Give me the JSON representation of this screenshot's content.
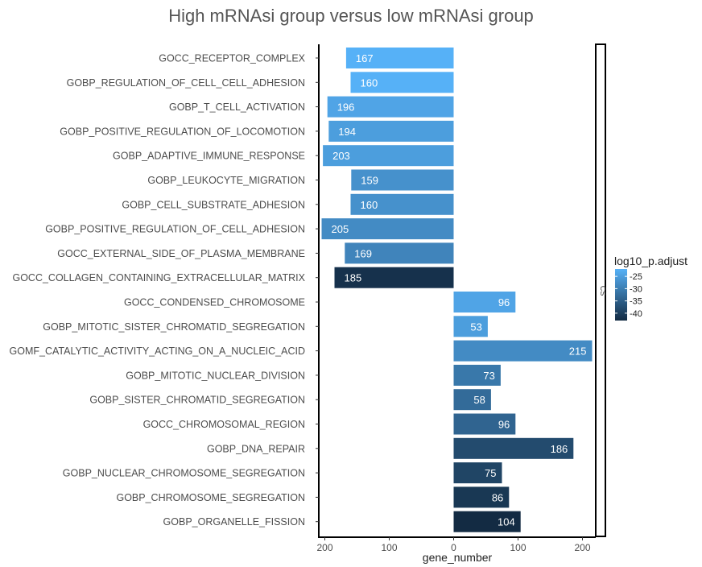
{
  "chart_data": {
    "type": "bar",
    "orientation": "horizontal",
    "title": "High mRNAsi group versus low mRNAsi group",
    "xlabel": "gene_number",
    "ylabel": "",
    "x_ticks": [
      "200",
      "100",
      "0",
      "100",
      "200"
    ],
    "x_tick_values": [
      -200,
      -100,
      0,
      100,
      200
    ],
    "xlim": [
      -210,
      222
    ],
    "facet_label": "CS",
    "legend": {
      "title": "log10_p.adjust",
      "ticks": [
        "-25",
        "-30",
        "-35",
        "-40"
      ],
      "tick_values": [
        -25,
        -30,
        -35,
        -40
      ],
      "range": [
        -43,
        -22
      ],
      "colors": [
        "#132b43",
        "#56b1f7"
      ],
      "placement": "right"
    },
    "categories": [
      "GOCC_RECEPTOR_COMPLEX",
      "GOBP_REGULATION_OF_CELL_CELL_ADHESION",
      "GOBP_T_CELL_ACTIVATION",
      "GOBP_POSITIVE_REGULATION_OF_LOCOMOTION",
      "GOBP_ADAPTIVE_IMMUNE_RESPONSE",
      "GOBP_LEUKOCYTE_MIGRATION",
      "GOBP_CELL_SUBSTRATE_ADHESION",
      "GOBP_POSITIVE_REGULATION_OF_CELL_ADHESION",
      "GOCC_EXTERNAL_SIDE_OF_PLASMA_MEMBRANE",
      "GOCC_COLLAGEN_CONTAINING_EXTRACELLULAR_MATRIX",
      "GOCC_CONDENSED_CHROMOSOME",
      "GOBP_MITOTIC_SISTER_CHROMATID_SEGREGATION",
      "GOMF_CATALYTIC_ACTIVITY_ACTING_ON_A_NUCLEIC_ACID",
      "GOBP_MITOTIC_NUCLEAR_DIVISION",
      "GOBP_SISTER_CHROMATID_SEGREGATION",
      "GOCC_CHROMOSOMAL_REGION",
      "GOBP_DNA_REPAIR",
      "GOBP_NUCLEAR_CHROMOSOME_SEGREGATION",
      "GOBP_CHROMOSOME_SEGREGATION",
      "GOBP_ORGANELLE_FISSION"
    ],
    "values": [
      -167,
      -160,
      -196,
      -194,
      -203,
      -159,
      -160,
      -205,
      -169,
      -185,
      96,
      53,
      215,
      73,
      58,
      96,
      186,
      75,
      86,
      104
    ],
    "value_labels": [
      "167",
      "160",
      "196",
      "194",
      "203",
      "159",
      "160",
      "205",
      "169",
      "185",
      "96",
      "53",
      "215",
      "73",
      "58",
      "96",
      "186",
      "75",
      "86",
      "104"
    ],
    "log10_p_adjust": [
      -22,
      -22,
      -24,
      -25,
      -25,
      -27,
      -27,
      -28,
      -29,
      -42,
      -24,
      -25,
      -28,
      -31,
      -33,
      -34,
      -38,
      -39,
      -41,
      -43
    ]
  }
}
